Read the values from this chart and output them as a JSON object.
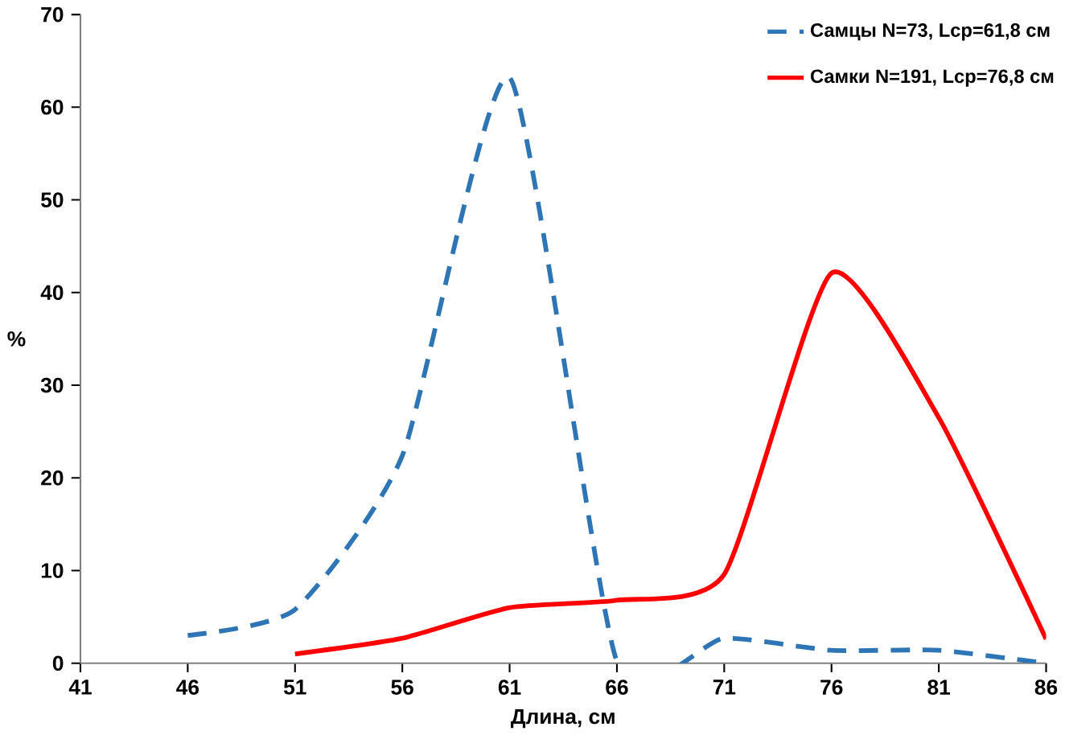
{
  "chart_data": {
    "type": "line",
    "xlabel": "Длина, см",
    "ylabel": "%",
    "x": [
      46,
      51,
      56,
      61,
      66,
      71,
      76,
      81,
      86
    ],
    "xlim": [
      41,
      86
    ],
    "xticks": [
      41,
      46,
      51,
      56,
      61,
      66,
      71,
      76,
      81,
      86
    ],
    "ylim": [
      0,
      70
    ],
    "yticks": [
      0,
      10,
      20,
      30,
      40,
      50,
      60,
      70
    ],
    "grid": false,
    "legend": "top right",
    "marker": "none",
    "series": [
      {
        "name": "Самцы N=73, Lср=61,8 см",
        "color": "#2e75b6",
        "line_style": "dashed",
        "values": [
          3.0,
          5.8,
          22.4,
          63.2,
          0.2,
          2.7,
          1.4,
          1.4,
          0
        ]
      },
      {
        "name": "Самки N=191, Lср=76,8 см",
        "color": "#ff0000",
        "line_style": "solid",
        "values": [
          null,
          1.0,
          2.7,
          6.0,
          6.8,
          9.6,
          42.1,
          26.5,
          2.6
        ]
      }
    ]
  }
}
